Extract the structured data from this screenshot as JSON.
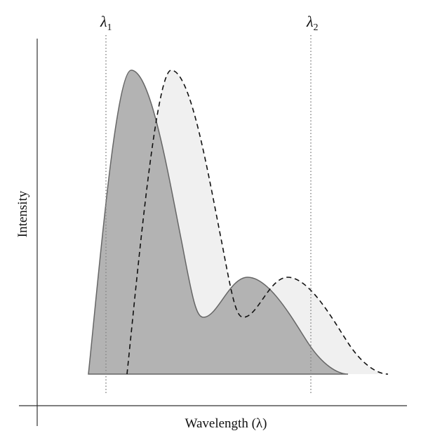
{
  "markers": [
    {
      "symbol": "λ",
      "subscript": "1"
    },
    {
      "symbol": "λ",
      "subscript": "2"
    }
  ],
  "y_axis": {
    "label": "Intensity"
  },
  "x_axis": {
    "label": "Wavelength (λ)"
  }
}
